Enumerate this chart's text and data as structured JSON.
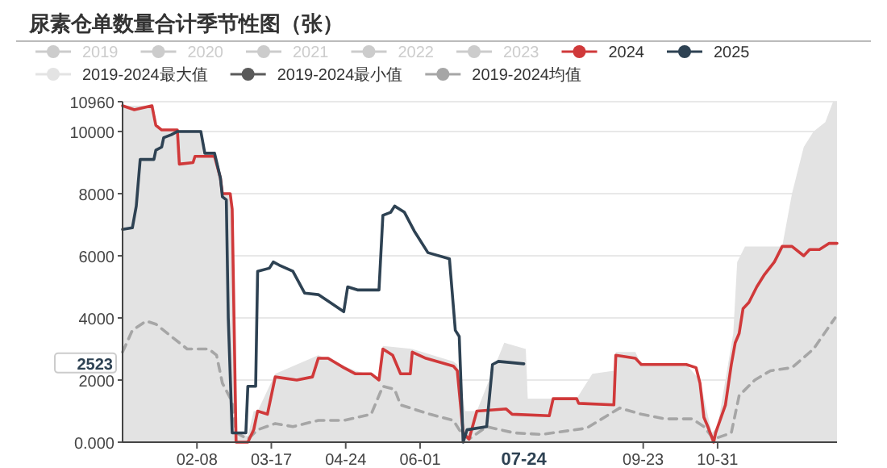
{
  "chart_data": {
    "type": "line",
    "title": "尿素仓单数量合计季节性图（张）",
    "legend": "top",
    "grid": "y",
    "marker": "none",
    "xlim": [
      "--01-01",
      "--12-31"
    ],
    "xticks": [
      {
        "value": "--02-08",
        "label": "02-08"
      },
      {
        "value": "--03-17",
        "label": "03-17"
      },
      {
        "value": "--04-24",
        "label": "04-24"
      },
      {
        "value": "--06-01",
        "label": "06-01"
      },
      {
        "value": "--09-23",
        "label": "09-23"
      },
      {
        "value": "--10-31",
        "label": "10-31"
      }
    ],
    "ylim": [
      0,
      10960
    ],
    "yticks": [
      {
        "value": 0,
        "label": "0.000"
      },
      2000,
      4000,
      6000,
      8000,
      10000,
      10960
    ],
    "annotations": [
      {
        "text": "07-24",
        "x": "--07-24"
      },
      "2523"
    ],
    "series": [
      {
        "name": "2019",
        "color": "#cccccc"
      },
      {
        "name": "2020",
        "color": "#cccccc"
      },
      {
        "name": "2021",
        "color": "#cccccc"
      },
      {
        "name": "2022",
        "color": "#cccccc"
      },
      {
        "name": "2023",
        "color": "#cccccc"
      },
      {
        "name": "2024",
        "color": "#d0393a",
        "x": [
          "--01-01",
          "--01-07",
          "--01-16",
          "--01-18",
          "--01-21",
          "--01-29",
          "--01-30",
          "--02-06",
          "--02-07",
          "--02-17",
          "--02-20",
          "--02-21",
          "--02-25",
          "--02-26",
          "--02-28",
          "--03-05",
          "--03-08",
          "--03-10",
          "--03-15",
          "--03-19",
          "--03-30",
          "--04-07",
          "--04-10",
          "--04-15",
          "--04-23",
          "--04-29",
          "--05-07",
          "--05-11",
          "--05-13",
          "--05-18",
          "--05-22",
          "--05-27",
          "--05-28",
          "--06-04",
          "--06-18",
          "--06-20",
          "--06-23",
          "--06-26",
          "--06-30",
          "--07-15",
          "--07-18",
          "--08-06",
          "--08-08",
          "--08-20",
          "--08-21",
          "--09-08",
          "--09-09",
          "--09-19",
          "--09-22",
          "--10-15",
          "--10-20",
          "--10-22",
          "--10-24",
          "--10-26",
          "--10-29",
          "--10-30",
          "--11-04",
          "--11-07",
          "--11-09",
          "--11-11",
          "--11-13",
          "--11-16",
          "--11-20",
          "--11-24",
          "--11-29",
          "--12-03",
          "--12-08",
          "--12-14",
          "--12-17",
          "--12-22",
          "--12-27",
          "--12-31"
        ],
        "values": [
          10830,
          10700,
          10830,
          10200,
          10050,
          10050,
          8950,
          9000,
          9200,
          9200,
          8500,
          8000,
          8000,
          7500,
          0,
          0,
          400,
          1000,
          900,
          2100,
          2000,
          2100,
          2700,
          2700,
          2400,
          2200,
          2200,
          2000,
          3000,
          2800,
          2200,
          2200,
          2900,
          2700,
          2450,
          2300,
          300,
          100,
          1000,
          1070,
          900,
          850,
          1400,
          1400,
          1250,
          1200,
          2800,
          2700,
          2500,
          2500,
          2400,
          1900,
          800,
          500,
          0,
          300,
          1200,
          2500,
          3200,
          3500,
          4300,
          4500,
          5000,
          5400,
          5800,
          6300,
          6300,
          6000,
          6200,
          6200,
          6400,
          6400
        ]
      },
      {
        "name": "2025",
        "color": "#2e4253",
        "x": [
          "--01-01",
          "--01-06",
          "--01-08",
          "--01-10",
          "--01-17",
          "--01-18",
          "--01-21",
          "--01-22",
          "--01-26",
          "--01-29",
          "--02-10",
          "--02-12",
          "--02-17",
          "--02-20",
          "--02-21",
          "--02-23",
          "--02-24",
          "--02-26",
          "--03-04",
          "--03-05",
          "--03-09",
          "--03-10",
          "--03-16",
          "--03-18",
          "--03-21",
          "--03-28",
          "--04-03",
          "--04-10",
          "--04-16",
          "--04-23",
          "--04-25",
          "--04-30",
          "--05-11",
          "--05-13",
          "--05-17",
          "--05-19",
          "--05-24",
          "--05-29",
          "--06-05",
          "--06-16",
          "--06-19",
          "--06-21",
          "--06-23",
          "--06-25",
          "--07-05",
          "--07-08",
          "--07-11",
          "--07-24"
        ],
        "values": [
          6850,
          6900,
          7600,
          9100,
          9100,
          9400,
          9500,
          9800,
          9900,
          10000,
          10000,
          9300,
          9300,
          8500,
          7900,
          7800,
          4000,
          300,
          300,
          1800,
          1800,
          5500,
          5600,
          5800,
          5700,
          5500,
          4800,
          4750,
          4500,
          4200,
          5000,
          4900,
          4900,
          7300,
          7400,
          7600,
          7400,
          6800,
          6100,
          5900,
          3600,
          3400,
          0,
          400,
          500,
          2500,
          2600,
          2523
        ]
      },
      {
        "name": "2019-2024最大值",
        "color": "#e3e3e3",
        "type": "area",
        "x": [
          "--01-01",
          "--01-17",
          "--01-18",
          "--01-21",
          "--02-10",
          "--02-11",
          "--02-17",
          "--02-20",
          "--02-21",
          "--02-26",
          "--02-28",
          "--03-05",
          "--03-08",
          "--03-10",
          "--03-19",
          "--04-10",
          "--04-29",
          "--05-11",
          "--05-13",
          "--05-28",
          "--06-18",
          "--06-20",
          "--06-24",
          "--06-30",
          "--07-05",
          "--07-14",
          "--07-25",
          "--07-26",
          "--08-20",
          "--08-28",
          "--09-08",
          "--09-09",
          "--09-19",
          "--09-22",
          "--10-15",
          "--10-22",
          "--10-28",
          "--10-31",
          "--11-08",
          "--11-10",
          "--11-14",
          "--12-03",
          "--12-08",
          "--12-14",
          "--12-19",
          "--12-25",
          "--12-29",
          "--12-31"
        ],
        "values": [
          10830,
          10830,
          10200,
          10050,
          10050,
          9300,
          9300,
          8500,
          8000,
          7900,
          300,
          200,
          1000,
          1000,
          2200,
          2800,
          2300,
          2100,
          3100,
          3000,
          2600,
          2500,
          1000,
          1000,
          1800,
          3200,
          3000,
          1400,
          1400,
          2200,
          2300,
          2900,
          2900,
          2500,
          2500,
          2000,
          300,
          500,
          3500,
          5800,
          6300,
          6300,
          8000,
          9500,
          10000,
          10300,
          10960,
          10960
        ]
      },
      {
        "name": "2019-2024最小值",
        "color": "#5a5a5a"
      },
      {
        "name": "2019-2024均值",
        "color": "#a6a6a6",
        "line_style": "dashed",
        "x": [
          "--01-01",
          "--01-06",
          "--01-13",
          "--01-18",
          "--01-26",
          "--02-03",
          "--02-14",
          "--02-18",
          "--02-21",
          "--02-26",
          "--02-28",
          "--03-05",
          "--03-10",
          "--03-19",
          "--03-28",
          "--04-10",
          "--04-23",
          "--05-07",
          "--05-13",
          "--05-19",
          "--05-22",
          "--06-06",
          "--06-18",
          "--06-21",
          "--06-26",
          "--07-05",
          "--07-19",
          "--08-02",
          "--08-25",
          "--09-11",
          "--09-22",
          "--10-04",
          "--10-18",
          "--10-24",
          "--10-29",
          "--11-07",
          "--11-11",
          "--11-19",
          "--11-27",
          "--12-08",
          "--12-19",
          "--12-30"
        ],
        "values": [
          2900,
          3600,
          3900,
          3800,
          3400,
          3000,
          3000,
          2800,
          1900,
          1300,
          300,
          100,
          400,
          600,
          500,
          700,
          700,
          900,
          1800,
          1700,
          1200,
          900,
          700,
          400,
          100,
          500,
          300,
          250,
          450,
          1100,
          900,
          750,
          750,
          500,
          100,
          300,
          1500,
          2000,
          2300,
          2400,
          3000,
          4000
        ]
      }
    ]
  }
}
